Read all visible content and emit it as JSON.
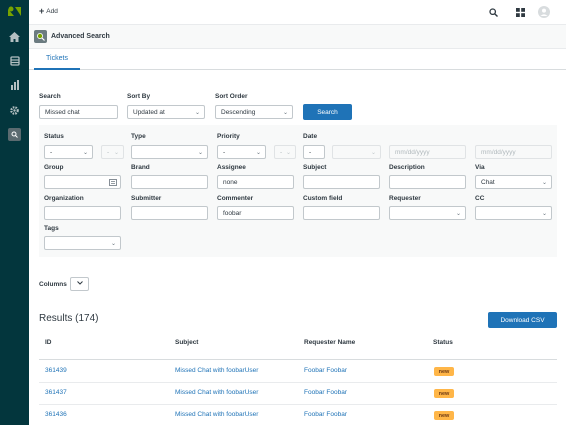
{
  "topbar": {
    "add_label": "Add"
  },
  "app": {
    "title": "Advanced Search"
  },
  "tabs": [
    {
      "label": "Tickets"
    }
  ],
  "search": {
    "search_label": "Search",
    "search_value": "Missed chat",
    "sort_by_label": "Sort By",
    "sort_by_value": "Updated at",
    "sort_order_label": "Sort Order",
    "sort_order_value": "Descending",
    "search_button": "Search"
  },
  "filters": {
    "status_label": "Status",
    "status_value": "-",
    "status_op": "-",
    "type_label": "Type",
    "priority_label": "Priority",
    "priority_value": "-",
    "priority_op": "-",
    "date_label": "Date",
    "date_op": "-",
    "date_placeholder_1": "mm/dd/yyyy",
    "date_placeholder_2": "mm/dd/yyyy",
    "group_label": "Group",
    "brand_label": "Brand",
    "assignee_label": "Assignee",
    "assignee_value": "none",
    "subject_label": "Subject",
    "description_label": "Description",
    "via_label": "Via",
    "via_value": "Chat",
    "organization_label": "Organization",
    "submitter_label": "Submitter",
    "commenter_label": "Commenter",
    "commenter_value": "foobar",
    "custom_field_label": "Custom field",
    "requester_label": "Requester",
    "cc_label": "CC",
    "tags_label": "Tags"
  },
  "columns_label": "Columns",
  "results": {
    "title": "Results (174)",
    "download_label": "Download CSV",
    "headers": {
      "id": "ID",
      "subject": "Subject",
      "requester": "Requester Name",
      "status": "Status"
    },
    "rows": [
      {
        "id": "361439",
        "subject": "Missed Chat with foobarUser",
        "requester": "Foobar Foobar",
        "status": "new"
      },
      {
        "id": "361437",
        "subject": "Missed Chat with foobarUser",
        "requester": "Foobar Foobar",
        "status": "new"
      },
      {
        "id": "361436",
        "subject": "Missed Chat with foobarUser",
        "requester": "Foobar Foobar",
        "status": "new"
      }
    ]
  },
  "colors": {
    "sidebar": "#03363d",
    "accent": "#1f73b7",
    "badge_new": "#ffb648"
  }
}
